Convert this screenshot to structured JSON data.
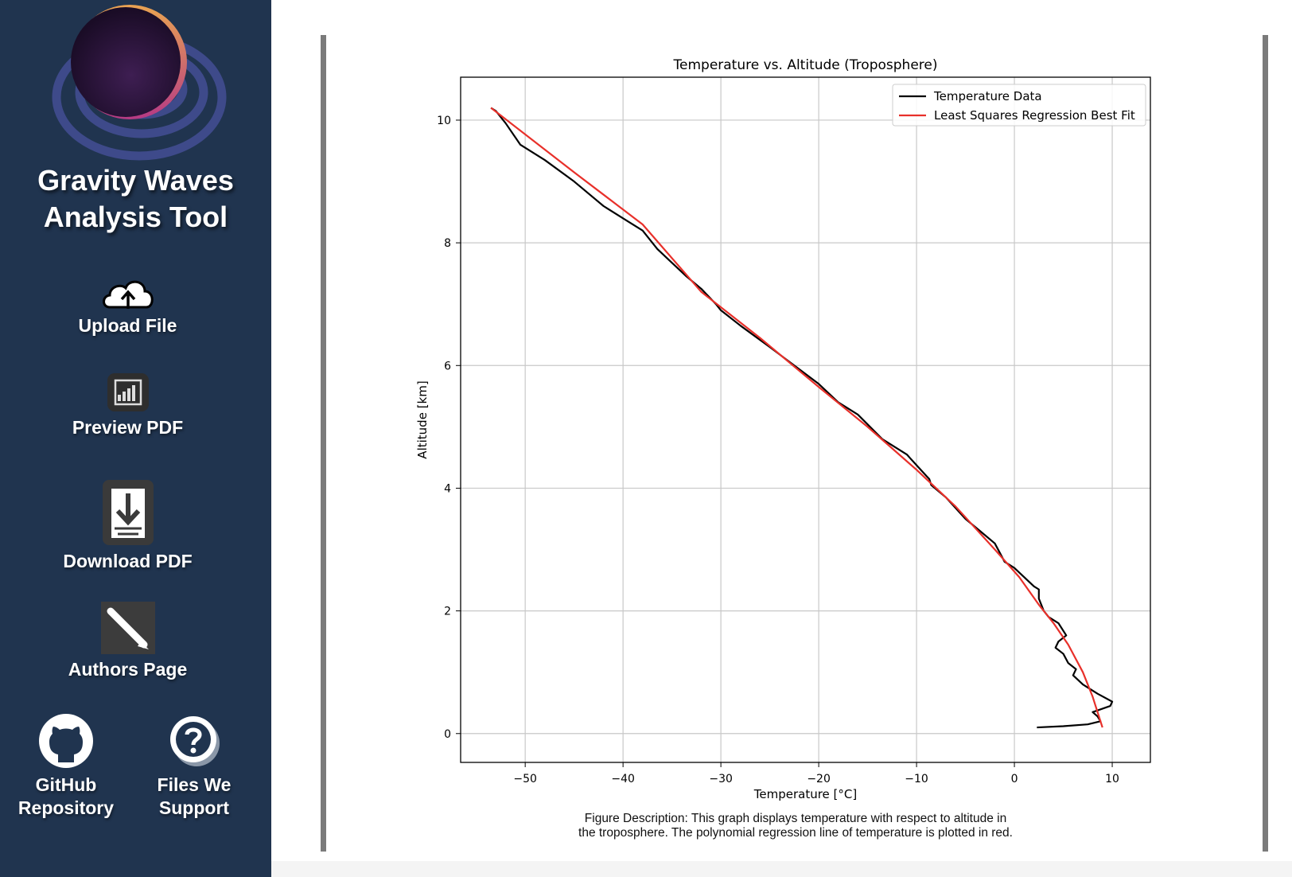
{
  "sidebar": {
    "app_title_line1": "Gravity Waves",
    "app_title_line2": "Analysis Tool",
    "items": [
      {
        "label": "Upload File",
        "icon": "cloud-upload-icon"
      },
      {
        "label": "Preview PDF",
        "icon": "chart-document-icon"
      },
      {
        "label": "Download PDF",
        "icon": "file-download-icon"
      },
      {
        "label": "Authors Page",
        "icon": "pencil-icon"
      }
    ],
    "github": {
      "line1": "GitHub",
      "line2": "Repository",
      "icon": "github-icon"
    },
    "files": {
      "line1": "Files We",
      "line2": "Support",
      "icon": "question-icon"
    }
  },
  "colors": {
    "sidebar": "#20344f",
    "data_line": "#000000",
    "fit_line": "#e8302a"
  },
  "caption": {
    "line1": "Figure Description: This graph displays temperature with respect to altitude in",
    "line2": "the troposphere. The polynomial regression line of temperature is plotted in red."
  },
  "chart_data": {
    "type": "line",
    "title": "Temperature vs. Altitude (Troposphere)",
    "xlabel": "Temperature [°C]",
    "ylabel": "Altitude [km]",
    "xlim": [
      -56.6,
      13.9
    ],
    "ylim": [
      -0.47,
      10.7
    ],
    "xticks": [
      -50,
      -40,
      -30,
      -20,
      -10,
      0,
      10
    ],
    "xtick_labels": [
      "−50",
      "−40",
      "−30",
      "−20",
      "−10",
      "0",
      "10"
    ],
    "yticks": [
      0,
      2,
      4,
      6,
      8,
      10
    ],
    "ytick_labels": [
      "0",
      "2",
      "4",
      "6",
      "8",
      "10"
    ],
    "grid": true,
    "legend_position": "top-right",
    "series": [
      {
        "name": "Temperature Data",
        "color": "#000000",
        "points": [
          [
            -53.5,
            10.2
          ],
          [
            -53,
            10.15
          ],
          [
            -52,
            9.95
          ],
          [
            -50.5,
            9.6
          ],
          [
            -48,
            9.35
          ],
          [
            -45,
            9.0
          ],
          [
            -42,
            8.6
          ],
          [
            -39.5,
            8.35
          ],
          [
            -38,
            8.2
          ],
          [
            -36.5,
            7.9
          ],
          [
            -35.5,
            7.75
          ],
          [
            -33.5,
            7.45
          ],
          [
            -32,
            7.25
          ],
          [
            -30.5,
            7.0
          ],
          [
            -30,
            6.9
          ],
          [
            -28,
            6.65
          ],
          [
            -25,
            6.3
          ],
          [
            -22.5,
            6.0
          ],
          [
            -20,
            5.7
          ],
          [
            -18,
            5.4
          ],
          [
            -16,
            5.2
          ],
          [
            -13.5,
            4.8
          ],
          [
            -11,
            4.55
          ],
          [
            -9,
            4.2
          ],
          [
            -8.7,
            4.15
          ],
          [
            -8.5,
            4.05
          ],
          [
            -7,
            3.85
          ],
          [
            -5,
            3.5
          ],
          [
            -3.5,
            3.3
          ],
          [
            -2,
            3.1
          ],
          [
            -1,
            2.8
          ],
          [
            0,
            2.7
          ],
          [
            2,
            2.4
          ],
          [
            2.5,
            2.35
          ],
          [
            2.5,
            2.2
          ],
          [
            3,
            2.0
          ],
          [
            3.5,
            1.9
          ],
          [
            4.5,
            1.8
          ],
          [
            5.3,
            1.6
          ],
          [
            4.5,
            1.5
          ],
          [
            4.2,
            1.4
          ],
          [
            5,
            1.3
          ],
          [
            5.5,
            1.15
          ],
          [
            6.3,
            1.05
          ],
          [
            6,
            0.95
          ],
          [
            7,
            0.8
          ],
          [
            8.5,
            0.65
          ],
          [
            10,
            0.52
          ],
          [
            9.8,
            0.45
          ],
          [
            8,
            0.35
          ],
          [
            8.5,
            0.28
          ],
          [
            8.8,
            0.2
          ],
          [
            7.5,
            0.15
          ],
          [
            5,
            0.12
          ],
          [
            2.3,
            0.1
          ]
        ]
      },
      {
        "name": "Least Squares Regression Best Fit",
        "color": "#e8302a",
        "points": [
          [
            -53.5,
            10.2
          ],
          [
            -45,
            9.15
          ],
          [
            -38,
            8.3
          ],
          [
            -32,
            7.2
          ],
          [
            -26,
            6.45
          ],
          [
            -20,
            5.65
          ],
          [
            -15,
            5.0
          ],
          [
            -10,
            4.3
          ],
          [
            -6,
            3.7
          ],
          [
            -2,
            3.0
          ],
          [
            0.5,
            2.55
          ],
          [
            2.5,
            2.1
          ],
          [
            4,
            1.8
          ],
          [
            5.5,
            1.45
          ],
          [
            7,
            1.0
          ],
          [
            8,
            0.6
          ],
          [
            9,
            0.1
          ]
        ]
      }
    ]
  }
}
